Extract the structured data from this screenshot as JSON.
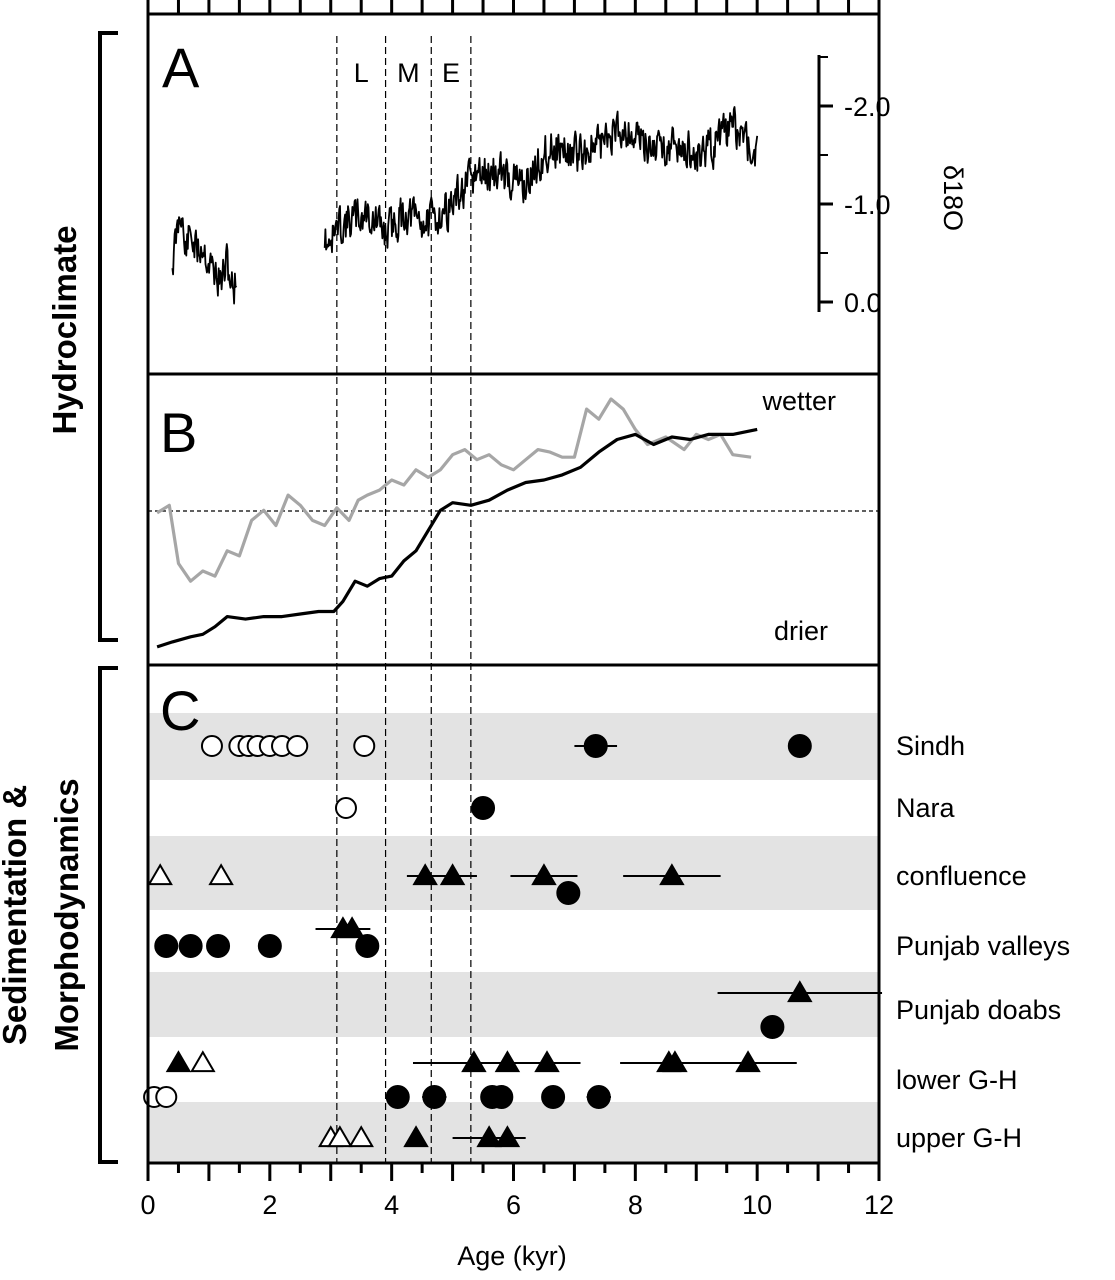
{
  "chart_data": {
    "type": "scatter",
    "x_axis": {
      "label": "Age (kyr)",
      "ticks": [
        "0",
        "2",
        "4",
        "6",
        "8",
        "10",
        "12"
      ],
      "range": [
        0,
        12
      ]
    },
    "group_labels": {
      "hydroclimate": "Hydroclimate",
      "sedimentation": [
        "Sedimentation &",
        "Morphodynamics"
      ]
    },
    "phase_markers": {
      "labels": [
        "L",
        "M",
        "E"
      ],
      "boundaries": [
        3.1,
        3.9,
        4.65,
        5.3
      ]
    },
    "panel_a": {
      "letter": "A",
      "y_axis": {
        "label": "δ18O",
        "ticks": [
          "-2.0",
          "-1.0",
          "0.0"
        ],
        "tick_values": [
          -2.0,
          -1.0,
          0.0
        ],
        "reversed": true
      },
      "series": [
        {
          "anchors": [
            [
              0.4,
              -0.4
            ],
            [
              0.5,
              -0.8
            ],
            [
              0.55,
              -1.0
            ],
            [
              0.6,
              -0.5
            ],
            [
              0.7,
              -0.7
            ],
            [
              0.8,
              -0.5
            ],
            [
              0.9,
              -0.6
            ],
            [
              1.0,
              -0.4
            ],
            [
              1.1,
              -0.3
            ],
            [
              1.2,
              -0.2
            ],
            [
              1.3,
              -0.4
            ],
            [
              1.4,
              -0.1
            ],
            [
              1.45,
              -0.3
            ]
          ]
        },
        {
          "anchors": [
            [
              2.9,
              -0.6
            ],
            [
              3.2,
              -0.8
            ],
            [
              3.6,
              -0.9
            ],
            [
              3.9,
              -0.7
            ],
            [
              4.2,
              -0.9
            ],
            [
              4.6,
              -0.8
            ],
            [
              5.0,
              -1.0
            ],
            [
              5.4,
              -1.3
            ],
            [
              5.8,
              -1.3
            ],
            [
              6.2,
              -1.2
            ],
            [
              6.6,
              -1.6
            ],
            [
              7.0,
              -1.5
            ],
            [
              7.4,
              -1.6
            ],
            [
              7.8,
              -1.8
            ],
            [
              8.2,
              -1.6
            ],
            [
              8.6,
              -1.6
            ],
            [
              9.0,
              -1.5
            ],
            [
              9.3,
              -1.6
            ],
            [
              9.6,
              -1.8
            ],
            [
              10.0,
              -1.5
            ]
          ]
        }
      ],
      "amplitude": 0.28
    },
    "panel_b": {
      "letter": "B",
      "annotations": {
        "wetter": "wetter",
        "drier": "drier"
      },
      "reference_line": true,
      "series": [
        {
          "color": "#a6a6a6",
          "points": [
            [
              0.15,
              0.55
            ],
            [
              0.35,
              0.58
            ],
            [
              0.5,
              0.35
            ],
            [
              0.7,
              0.28
            ],
            [
              0.9,
              0.32
            ],
            [
              1.1,
              0.3
            ],
            [
              1.3,
              0.4
            ],
            [
              1.5,
              0.38
            ],
            [
              1.7,
              0.52
            ],
            [
              1.9,
              0.56
            ],
            [
              2.1,
              0.5
            ],
            [
              2.3,
              0.62
            ],
            [
              2.5,
              0.58
            ],
            [
              2.7,
              0.52
            ],
            [
              2.9,
              0.5
            ],
            [
              3.1,
              0.57
            ],
            [
              3.3,
              0.52
            ],
            [
              3.45,
              0.6
            ],
            [
              3.6,
              0.62
            ],
            [
              3.8,
              0.64
            ],
            [
              4.0,
              0.68
            ],
            [
              4.2,
              0.66
            ],
            [
              4.4,
              0.72
            ],
            [
              4.6,
              0.69
            ],
            [
              4.8,
              0.72
            ],
            [
              5.0,
              0.78
            ],
            [
              5.2,
              0.8
            ],
            [
              5.4,
              0.76
            ],
            [
              5.6,
              0.78
            ],
            [
              5.8,
              0.74
            ],
            [
              6.0,
              0.72
            ],
            [
              6.2,
              0.76
            ],
            [
              6.4,
              0.8
            ],
            [
              6.6,
              0.79
            ],
            [
              6.8,
              0.77
            ],
            [
              7.0,
              0.77
            ],
            [
              7.2,
              0.96
            ],
            [
              7.4,
              0.92
            ],
            [
              7.6,
              1.0
            ],
            [
              7.8,
              0.96
            ],
            [
              8.0,
              0.88
            ],
            [
              8.2,
              0.82
            ],
            [
              8.5,
              0.85
            ],
            [
              8.8,
              0.8
            ],
            [
              9.0,
              0.86
            ],
            [
              9.2,
              0.84
            ],
            [
              9.4,
              0.86
            ],
            [
              9.6,
              0.78
            ],
            [
              9.9,
              0.77
            ]
          ]
        },
        {
          "color": "#000000",
          "points": [
            [
              0.15,
              0.02
            ],
            [
              0.4,
              0.04
            ],
            [
              0.7,
              0.06
            ],
            [
              0.9,
              0.07
            ],
            [
              1.1,
              0.1
            ],
            [
              1.3,
              0.14
            ],
            [
              1.6,
              0.13
            ],
            [
              1.9,
              0.14
            ],
            [
              2.2,
              0.14
            ],
            [
              2.5,
              0.15
            ],
            [
              2.8,
              0.16
            ],
            [
              3.05,
              0.16
            ],
            [
              3.2,
              0.2
            ],
            [
              3.4,
              0.28
            ],
            [
              3.6,
              0.26
            ],
            [
              3.8,
              0.29
            ],
            [
              4.0,
              0.3
            ],
            [
              4.2,
              0.36
            ],
            [
              4.4,
              0.4
            ],
            [
              4.6,
              0.48
            ],
            [
              4.8,
              0.56
            ],
            [
              5.0,
              0.59
            ],
            [
              5.3,
              0.58
            ],
            [
              5.6,
              0.6
            ],
            [
              5.9,
              0.64
            ],
            [
              6.2,
              0.67
            ],
            [
              6.5,
              0.68
            ],
            [
              6.8,
              0.7
            ],
            [
              7.1,
              0.73
            ],
            [
              7.4,
              0.79
            ],
            [
              7.7,
              0.84
            ],
            [
              8.0,
              0.86
            ],
            [
              8.3,
              0.82
            ],
            [
              8.6,
              0.85
            ],
            [
              8.9,
              0.84
            ],
            [
              9.2,
              0.86
            ],
            [
              9.6,
              0.86
            ],
            [
              10.0,
              0.88
            ]
          ]
        }
      ]
    },
    "panel_c": {
      "letter": "C",
      "rows": [
        {
          "label": "Sindh",
          "shaded": true
        },
        {
          "label": "Nara",
          "shaded": false
        },
        {
          "label": "confluence",
          "shaded": true
        },
        {
          "label": "Punjab valleys",
          "shaded": false
        },
        {
          "label": "Punjab doabs",
          "shaded": true
        },
        {
          "label": "lower G-H",
          "shaded": false
        },
        {
          "label": "upper G-H",
          "shaded": true
        }
      ],
      "markers": [
        {
          "row": 0,
          "age": 1.05,
          "shape": "circle",
          "filled": false
        },
        {
          "row": 0,
          "age": 1.5,
          "shape": "circle",
          "filled": false
        },
        {
          "row": 0,
          "age": 1.65,
          "shape": "circle",
          "filled": false
        },
        {
          "row": 0,
          "age": 1.8,
          "shape": "circle",
          "filled": false
        },
        {
          "row": 0,
          "age": 2.0,
          "shape": "circle",
          "filled": false
        },
        {
          "row": 0,
          "age": 2.2,
          "shape": "circle",
          "filled": false
        },
        {
          "row": 0,
          "age": 2.45,
          "shape": "circle",
          "filled": false
        },
        {
          "row": 0,
          "age": 3.55,
          "shape": "circle",
          "filled": false
        },
        {
          "row": 0,
          "age": 7.35,
          "shape": "circle",
          "filled": true,
          "err": 0.35
        },
        {
          "row": 0,
          "age": 10.7,
          "shape": "circle",
          "filled": true
        },
        {
          "row": 1,
          "age": 3.25,
          "shape": "circle",
          "filled": false
        },
        {
          "row": 1,
          "age": 5.5,
          "shape": "circle",
          "filled": true
        },
        {
          "row": 2,
          "age": 0.2,
          "shape": "triangle",
          "filled": false
        },
        {
          "row": 2,
          "age": 1.2,
          "shape": "triangle",
          "filled": false
        },
        {
          "row": 2,
          "age": 4.55,
          "shape": "triangle",
          "filled": true,
          "err": 0.3
        },
        {
          "row": 2,
          "age": 5.0,
          "shape": "triangle",
          "filled": true,
          "err": 0.4
        },
        {
          "row": 2,
          "age": 6.5,
          "shape": "triangle",
          "filled": true,
          "err": 0.55
        },
        {
          "row": 2,
          "age": 6.9,
          "shape": "circle",
          "filled": true,
          "offset": 1
        },
        {
          "row": 2,
          "age": 8.6,
          "shape": "triangle",
          "filled": true,
          "err": 0.8
        },
        {
          "row": 3,
          "age": 3.2,
          "shape": "triangle",
          "filled": true,
          "err": 0.45,
          "offset": -1
        },
        {
          "row": 3,
          "age": 3.35,
          "shape": "triangle",
          "filled": true,
          "offset": -1
        },
        {
          "row": 3,
          "age": 0.3,
          "shape": "circle",
          "filled": true
        },
        {
          "row": 3,
          "age": 0.7,
          "shape": "circle",
          "filled": true
        },
        {
          "row": 3,
          "age": 1.15,
          "shape": "circle",
          "filled": true
        },
        {
          "row": 3,
          "age": 2.0,
          "shape": "circle",
          "filled": true
        },
        {
          "row": 3,
          "age": 3.6,
          "shape": "circle",
          "filled": true
        },
        {
          "row": 4,
          "age": 10.7,
          "shape": "triangle",
          "filled": true,
          "err": 1.35,
          "offset": -1
        },
        {
          "row": 4,
          "age": 10.25,
          "shape": "circle",
          "filled": true,
          "offset": 1
        },
        {
          "row": 5,
          "age": 0.5,
          "shape": "triangle",
          "filled": true,
          "offset": -1
        },
        {
          "row": 5,
          "age": 0.9,
          "shape": "triangle",
          "filled": false,
          "offset": -1
        },
        {
          "row": 5,
          "age": 5.35,
          "shape": "triangle",
          "filled": true,
          "err": 1.0,
          "offset": -1
        },
        {
          "row": 5,
          "age": 5.9,
          "shape": "triangle",
          "filled": true,
          "offset": -1
        },
        {
          "row": 5,
          "age": 6.55,
          "shape": "triangle",
          "filled": true,
          "err": 0.55,
          "offset": -1
        },
        {
          "row": 5,
          "age": 8.55,
          "shape": "triangle",
          "filled": true,
          "err": 0.8,
          "offset": -1
        },
        {
          "row": 5,
          "age": 8.65,
          "shape": "triangle",
          "filled": true,
          "offset": -1
        },
        {
          "row": 5,
          "age": 9.85,
          "shape": "triangle",
          "filled": true,
          "err": 0.8,
          "offset": -1
        },
        {
          "row": 5,
          "age": 0.1,
          "shape": "circle",
          "filled": false,
          "offset": 1
        },
        {
          "row": 5,
          "age": 0.3,
          "shape": "circle",
          "filled": false,
          "offset": 1
        },
        {
          "row": 5,
          "age": 4.1,
          "shape": "circle",
          "filled": true,
          "offset": 1
        },
        {
          "row": 5,
          "age": 4.7,
          "shape": "circle",
          "filled": true,
          "err": 0.2,
          "offset": 1
        },
        {
          "row": 5,
          "age": 5.65,
          "shape": "circle",
          "filled": true,
          "offset": 1
        },
        {
          "row": 5,
          "age": 5.8,
          "shape": "circle",
          "filled": true,
          "offset": 1
        },
        {
          "row": 5,
          "age": 6.65,
          "shape": "circle",
          "filled": true,
          "offset": 1
        },
        {
          "row": 5,
          "age": 7.4,
          "shape": "circle",
          "filled": true,
          "err": 0.2,
          "offset": 1
        },
        {
          "row": 6,
          "age": 3.0,
          "shape": "triangle",
          "filled": false
        },
        {
          "row": 6,
          "age": 3.15,
          "shape": "triangle",
          "filled": false
        },
        {
          "row": 6,
          "age": 3.5,
          "shape": "triangle",
          "filled": false
        },
        {
          "row": 6,
          "age": 4.4,
          "shape": "triangle",
          "filled": true
        },
        {
          "row": 6,
          "age": 5.6,
          "shape": "triangle",
          "filled": true,
          "err": 0.6
        },
        {
          "row": 6,
          "age": 5.9,
          "shape": "triangle",
          "filled": true
        }
      ]
    }
  }
}
